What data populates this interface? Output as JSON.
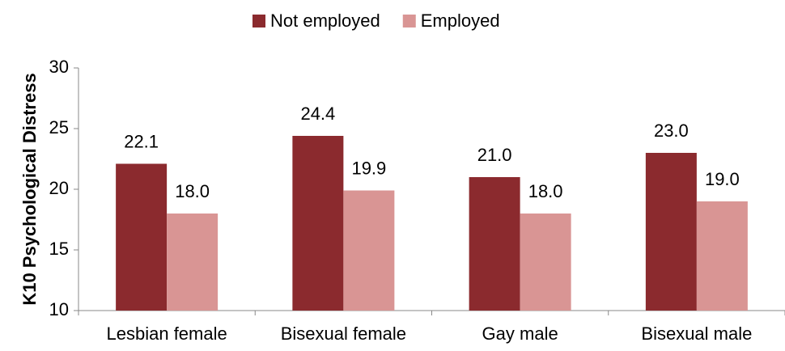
{
  "chart_data": {
    "type": "bar",
    "y_label": "K10 Psychological Distress",
    "categories": [
      "Lesbian female",
      "Bisexual female",
      "Gay male",
      "Bisexual male"
    ],
    "series": [
      {
        "name": "Not employed",
        "color": "#8b2a2e",
        "values": [
          22.1,
          24.4,
          21.0,
          23.0
        ],
        "value_labels": [
          "22.1",
          "24.4",
          "21.0",
          "23.0"
        ]
      },
      {
        "name": "Employed",
        "color": "#d99594",
        "values": [
          18.0,
          19.9,
          18.0,
          19.0
        ],
        "value_labels": [
          "18.0",
          "19.9",
          "18.0",
          "19.0"
        ]
      }
    ],
    "ylim": [
      10,
      30
    ],
    "yticks": [
      10,
      15,
      20,
      25,
      30
    ],
    "grid": false,
    "legend": "top"
  }
}
